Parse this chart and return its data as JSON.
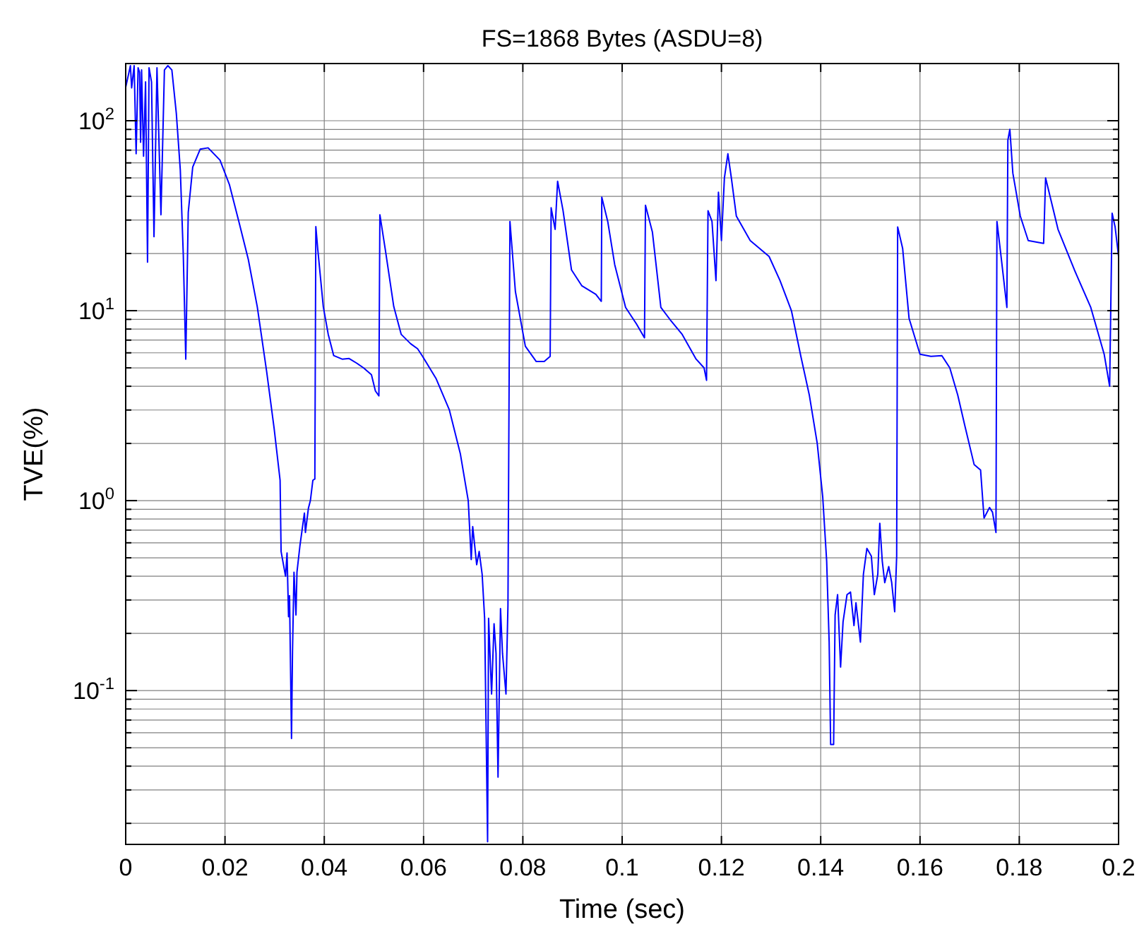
{
  "chart_data": {
    "type": "line",
    "title": "FS=1868 Bytes (ASDU=8)",
    "xlabel": "Time (sec)",
    "ylabel": "TVE(%)",
    "log": "y",
    "grid": true,
    "xlim": [
      0,
      0.2
    ],
    "xticks": [
      0,
      0.02,
      0.04,
      0.06,
      0.08,
      0.1,
      0.12,
      0.14,
      0.16,
      0.18,
      0.2
    ],
    "ylim": [
      0.0155,
      200
    ],
    "yticks": [
      {
        "value": 0.02,
        "label": null
      },
      {
        "value": 0.03,
        "label": null
      },
      {
        "value": 0.04,
        "label": null
      },
      {
        "value": 0.05,
        "label": null
      },
      {
        "value": 0.06,
        "label": null
      },
      {
        "value": 0.07,
        "label": null
      },
      {
        "value": 0.08,
        "label": null
      },
      {
        "value": 0.09,
        "label": null
      },
      {
        "value": 0.1,
        "label": "10$^{-1}$"
      },
      {
        "value": 0.2,
        "label": null
      },
      {
        "value": 0.3,
        "label": null
      },
      {
        "value": 0.4,
        "label": null
      },
      {
        "value": 0.5,
        "label": null
      },
      {
        "value": 0.6,
        "label": null
      },
      {
        "value": 0.7,
        "label": null
      },
      {
        "value": 0.8,
        "label": null
      },
      {
        "value": 0.9,
        "label": null
      },
      {
        "value": 1,
        "label": "10$^{0}$"
      },
      {
        "value": 2,
        "label": null
      },
      {
        "value": 3,
        "label": null
      },
      {
        "value": 4,
        "label": null
      },
      {
        "value": 5,
        "label": null
      },
      {
        "value": 6,
        "label": null
      },
      {
        "value": 7,
        "label": null
      },
      {
        "value": 8,
        "label": null
      },
      {
        "value": 9,
        "label": null
      },
      {
        "value": 10,
        "label": "10$^{1}$"
      },
      {
        "value": 20,
        "label": null
      },
      {
        "value": 30,
        "label": null
      },
      {
        "value": 40,
        "label": null
      },
      {
        "value": 50,
        "label": null
      },
      {
        "value": 60,
        "label": null
      },
      {
        "value": 70,
        "label": null
      },
      {
        "value": 80,
        "label": null
      },
      {
        "value": 90,
        "label": null
      },
      {
        "value": 100,
        "label": "10$^{2}$"
      }
    ],
    "series": [
      {
        "color": "#0000ff",
        "x": [
          0,
          0.00095,
          0.0012,
          0.0017,
          0.0021,
          0.0025,
          0.0028,
          0.003,
          0.0032,
          0.0036,
          0.004,
          0.0044,
          0.0047,
          0.0052,
          0.0057,
          0.0063,
          0.0071,
          0.0078,
          0.0085,
          0.0093,
          0.0102,
          0.011,
          0.0116,
          0.0121,
          0.0126,
          0.0135,
          0.015,
          0.0166,
          0.019,
          0.0209,
          0.0228,
          0.0247,
          0.0265,
          0.0284,
          0.0299,
          0.0311,
          0.0313,
          0.0322,
          0.0325,
          0.0328,
          0.033,
          0.0334,
          0.0336,
          0.0339,
          0.0343,
          0.0345,
          0.0351,
          0.036,
          0.0362,
          0.0368,
          0.0372,
          0.0377,
          0.0381,
          0.0383,
          0.0387,
          0.0398,
          0.0408,
          0.0419,
          0.0436,
          0.045,
          0.0465,
          0.0479,
          0.0495,
          0.0503,
          0.051,
          0.0512,
          0.0523,
          0.054,
          0.0555,
          0.0574,
          0.0588,
          0.0598,
          0.0625,
          0.0652,
          0.0674,
          0.069,
          0.0696,
          0.0699,
          0.0707,
          0.0712,
          0.0718,
          0.0723,
          0.0729,
          0.0731,
          0.0737,
          0.0742,
          0.0746,
          0.075,
          0.0755,
          0.0759,
          0.0766,
          0.077,
          0.0774,
          0.0785,
          0.0805,
          0.0827,
          0.0843,
          0.0855,
          0.0857,
          0.0865,
          0.087,
          0.0881,
          0.0898,
          0.0919,
          0.0947,
          0.0958,
          0.0959,
          0.0971,
          0.0985,
          0.1007,
          0.1029,
          0.1045,
          0.1047,
          0.1061,
          0.1078,
          0.1099,
          0.1121,
          0.1149,
          0.1165,
          0.117,
          0.1173,
          0.1181,
          0.1189,
          0.1194,
          0.12,
          0.1206,
          0.1213,
          0.122,
          0.123,
          0.1258,
          0.1296,
          0.1318,
          0.1341,
          0.136,
          0.1377,
          0.1393,
          0.1404,
          0.1412,
          0.1417,
          0.142,
          0.1426,
          0.1429,
          0.1434,
          0.144,
          0.1445,
          0.1453,
          0.146,
          0.1467,
          0.1471,
          0.148,
          0.1486,
          0.1493,
          0.1502,
          0.1508,
          0.1515,
          0.1519,
          0.1524,
          0.1529,
          0.1537,
          0.1543,
          0.1549,
          0.1553,
          0.1555,
          0.1565,
          0.1578,
          0.16,
          0.1622,
          0.1644,
          0.166,
          0.1676,
          0.169,
          0.1709,
          0.1722,
          0.1729,
          0.174,
          0.1746,
          0.1753,
          0.1755,
          0.1764,
          0.1775,
          0.1777,
          0.1781,
          0.1787,
          0.1802,
          0.1818,
          0.1849,
          0.1853,
          0.1878,
          0.1911,
          0.1944,
          0.1971,
          0.1982,
          0.1987,
          0.1993,
          0.2
        ],
        "values": [
          150,
          195,
          149,
          195,
          67,
          190,
          180,
          77,
          185,
          65,
          160,
          18,
          190,
          160,
          24.5,
          190,
          32,
          185,
          195,
          185,
          109,
          55,
          19.7,
          5.56,
          32.9,
          57,
          70.8,
          72,
          62,
          46,
          29.4,
          18.6,
          10.5,
          4.77,
          2.4,
          1.28,
          0.54,
          0.4,
          0.53,
          0.245,
          0.316,
          0.056,
          0.16,
          0.42,
          0.25,
          0.42,
          0.58,
          0.86,
          0.68,
          0.91,
          1.0,
          1.28,
          1.3,
          27.7,
          20.9,
          10.5,
          7.5,
          5.8,
          5.56,
          5.6,
          5.3,
          5.0,
          4.6,
          3.78,
          3.56,
          32,
          20.9,
          10.5,
          7.5,
          6.7,
          6.3,
          5.75,
          4.4,
          3.0,
          1.77,
          1.0,
          0.49,
          0.73,
          0.46,
          0.54,
          0.41,
          0.24,
          0.016,
          0.24,
          0.096,
          0.225,
          0.157,
          0.035,
          0.27,
          0.157,
          0.096,
          0.28,
          29.5,
          12.6,
          6.5,
          5.4,
          5.4,
          5.75,
          34.8,
          26.8,
          48,
          33.6,
          16.4,
          13.5,
          12.2,
          11.2,
          39.6,
          29.5,
          17.5,
          10.4,
          8.5,
          7.2,
          35.9,
          25.9,
          10.4,
          8.8,
          7.5,
          5.56,
          5.0,
          4.3,
          33.6,
          29.5,
          14.4,
          42,
          23.4,
          50,
          67,
          50,
          31.5,
          23.4,
          19.3,
          14.4,
          10,
          5.75,
          3.6,
          2.0,
          1.05,
          0.48,
          0.18,
          0.052,
          0.052,
          0.25,
          0.32,
          0.133,
          0.23,
          0.32,
          0.33,
          0.22,
          0.29,
          0.18,
          0.41,
          0.56,
          0.51,
          0.32,
          0.41,
          0.76,
          0.48,
          0.37,
          0.45,
          0.37,
          0.26,
          0.51,
          27.6,
          21.3,
          9.1,
          5.9,
          5.75,
          5.8,
          5.0,
          3.6,
          2.5,
          1.55,
          1.45,
          0.81,
          0.92,
          0.87,
          0.68,
          29.5,
          18.6,
          10.4,
          79,
          90,
          53,
          31.5,
          23.4,
          22.6,
          50,
          26.8,
          16.4,
          10.4,
          5.9,
          4.0,
          32.6,
          27.6,
          19.3
        ]
      }
    ]
  }
}
